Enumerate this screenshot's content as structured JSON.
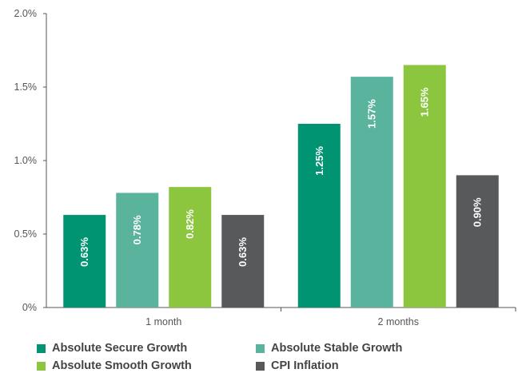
{
  "chart_data": {
    "type": "bar",
    "categories": [
      "1 month",
      "2 months"
    ],
    "series": [
      {
        "name": "Absolute Secure Growth",
        "values": [
          0.63,
          1.25
        ],
        "labels": [
          "0.63%",
          "1.25%"
        ],
        "color": "#009473"
      },
      {
        "name": "Absolute Stable Growth",
        "values": [
          0.78,
          1.57
        ],
        "labels": [
          "0.78%",
          "1.57%"
        ],
        "color": "#5ab39d"
      },
      {
        "name": "Absolute Smooth Growth",
        "values": [
          0.82,
          1.65
        ],
        "labels": [
          "0.82%",
          "1.65%"
        ],
        "color": "#8cc63f"
      },
      {
        "name": "CPI Inflation",
        "values": [
          0.63,
          0.9
        ],
        "labels": [
          "0.63%",
          "0.90%"
        ],
        "color": "#58595b"
      }
    ],
    "ylim": [
      0,
      2.0
    ],
    "yticks": [
      0,
      0.5,
      1.0,
      1.5,
      2.0
    ],
    "ytick_labels": [
      "0%",
      "0.5%",
      "1.0%",
      "1.5%",
      "2.0%"
    ],
    "grid": false,
    "legend_position": "bottom"
  }
}
